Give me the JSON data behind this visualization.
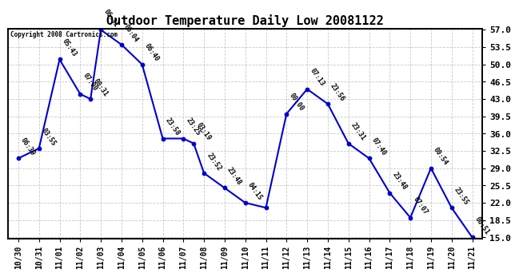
{
  "title": "Outdoor Temperature Daily Low 20081122",
  "copyright": "Copyright 2008 Cartronics.com",
  "tick_dates": [
    "10/30",
    "10/31",
    "11/01",
    "11/02",
    "11/03",
    "11/04",
    "11/05",
    "11/06",
    "11/07",
    "11/08",
    "11/09",
    "11/10",
    "11/11",
    "11/12",
    "11/13",
    "11/14",
    "11/15",
    "11/16",
    "11/17",
    "11/18",
    "11/19",
    "11/20",
    "11/21"
  ],
  "x_labels_data": [
    "10/30",
    "10/31",
    "11/01",
    "11/02",
    "11/02",
    "11/03",
    "11/04",
    "11/05",
    "11/06",
    "11/07",
    "11/07",
    "11/08",
    "11/09",
    "11/10",
    "11/11",
    "11/12",
    "11/13",
    "11/14",
    "11/15",
    "11/16",
    "11/17",
    "11/18",
    "11/19",
    "11/20",
    "11/21"
  ],
  "y_values": [
    31.0,
    33.0,
    51.0,
    44.0,
    43.0,
    57.0,
    54.0,
    50.0,
    35.0,
    35.0,
    34.0,
    28.0,
    25.0,
    22.0,
    21.0,
    40.0,
    45.0,
    42.0,
    34.0,
    31.0,
    24.0,
    19.0,
    29.0,
    21.0,
    15.0
  ],
  "point_labels": [
    "06:39",
    "03:55",
    "05:43",
    "07:00",
    "00:31",
    "06:31",
    "06:04",
    "06:40",
    "23:58",
    "23:25",
    "03:19",
    "23:52",
    "23:48",
    "04:15",
    "",
    "00:00",
    "07:13",
    "23:56",
    "23:31",
    "07:40",
    "23:48",
    "07:07",
    "00:54",
    "23:55",
    "06:51"
  ],
  "line_color": "#0000cc",
  "grid_color": "#bbbbbb",
  "background_color": "#ffffff",
  "y_min": 15.0,
  "y_max": 57.0,
  "y_ticks": [
    15.0,
    18.5,
    22.0,
    25.5,
    29.0,
    32.5,
    36.0,
    39.5,
    43.0,
    46.5,
    50.0,
    53.5,
    57.0
  ]
}
